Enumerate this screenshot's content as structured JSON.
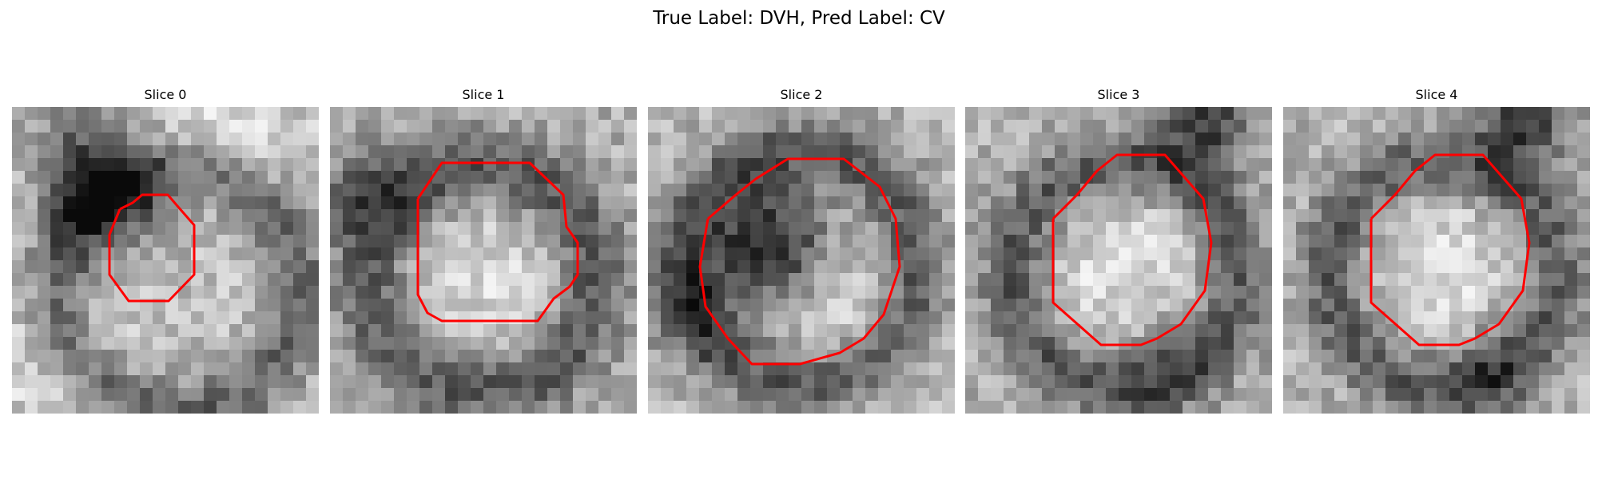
{
  "figure": {
    "title": "True Label: DVH, Pred Label: CV"
  },
  "panels": [
    {
      "title": "Slice 0"
    },
    {
      "title": "Slice 1"
    },
    {
      "title": "Slice 2"
    },
    {
      "title": "Slice 3"
    },
    {
      "title": "Slice 4"
    }
  ],
  "colors": {
    "contour": "#ff0000"
  }
}
